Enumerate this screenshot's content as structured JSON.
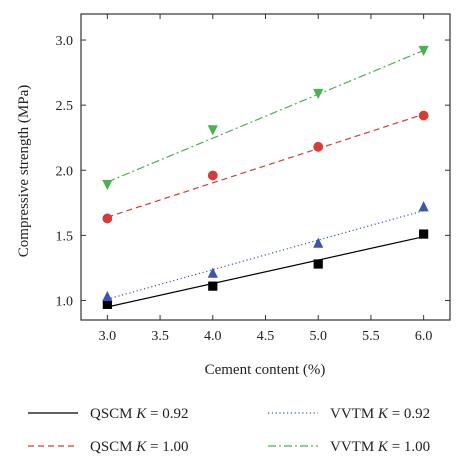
{
  "chart_data": {
    "type": "scatter",
    "xlabel": "Cement content (%)",
    "ylabel": "Compressive strength (MPa)",
    "xlim": [
      2.75,
      6.25
    ],
    "ylim": [
      0.85,
      3.2
    ],
    "xticks": [
      "3.0",
      "3.5",
      "4.0",
      "4.5",
      "5.0",
      "5.5",
      "6.0"
    ],
    "yticks": [
      "1.0",
      "1.5",
      "2.0",
      "2.5",
      "3.0"
    ],
    "grid": false,
    "legend_position": "bottom",
    "x": [
      3.0,
      4.0,
      5.0,
      6.0
    ],
    "series": [
      {
        "legend_prefix": "QSCM",
        "legend_suffix": " = 0.92",
        "marker": "square",
        "line_style": "solid",
        "color": "#000000",
        "values": [
          0.97,
          1.11,
          1.28,
          1.51
        ],
        "fit": [
          0.95,
          1.49
        ]
      },
      {
        "legend_prefix": "VVTM",
        "legend_suffix": " = 0.92",
        "marker": "triangle-up",
        "line_style": "dotted",
        "color": "#3b55b4",
        "values": [
          1.03,
          1.21,
          1.44,
          1.72
        ],
        "fit": [
          1.01,
          1.69
        ]
      },
      {
        "legend_prefix": "QSCM",
        "legend_suffix": " = 1.00",
        "marker": "circle",
        "line_style": "dashed",
        "color": "#d93a35",
        "values": [
          1.63,
          1.96,
          2.18,
          2.42
        ],
        "fit": [
          1.64,
          2.43
        ]
      },
      {
        "legend_prefix": "VVTM",
        "legend_suffix": " = 1.00",
        "marker": "triangle-down",
        "line_style": "dashdot",
        "color": "#4caf50",
        "values": [
          1.89,
          2.31,
          2.59,
          2.92
        ],
        "fit": [
          1.91,
          2.92
        ]
      }
    ],
    "legend_k_symbol": "K"
  }
}
